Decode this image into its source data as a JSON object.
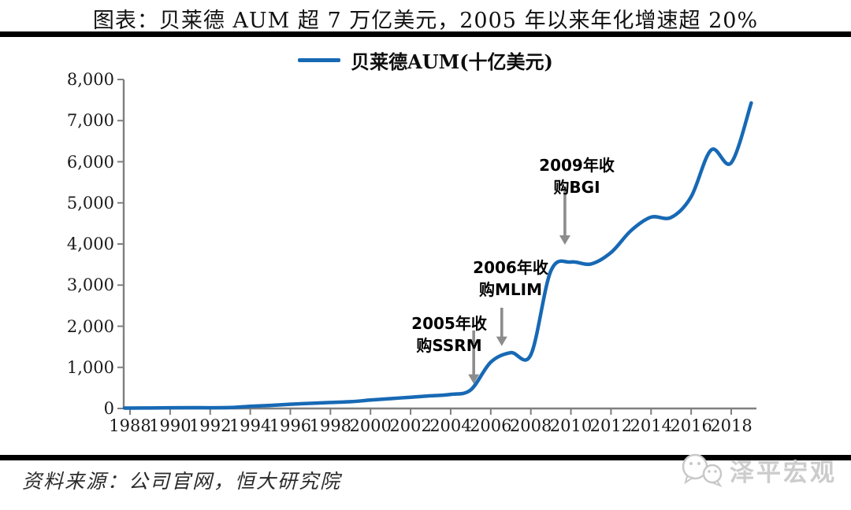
{
  "page": {
    "title": "图表：贝莱德 AUM 超 7 万亿美元，2005 年以来年化增速超 20%",
    "source_label": "资料来源：公司官网，恒大研究院",
    "watermark": "泽平宏观",
    "watermark_icon": "wechat-icon"
  },
  "chart_data": {
    "type": "line",
    "title": "",
    "xlabel": "",
    "ylabel": "",
    "grid": false,
    "legend_position": "top",
    "axis_color": "#7F7F7F",
    "annotation_color": "#8C8C8C",
    "xlim": [
      1988,
      2019.3
    ],
    "ylim": [
      0,
      8000
    ],
    "x": [
      1988,
      1989,
      1990,
      1991,
      1992,
      1993,
      1994,
      1995,
      1996,
      1997,
      1998,
      1999,
      2000,
      2001,
      2002,
      2003,
      2004,
      2005,
      2006,
      2007,
      2008,
      2009,
      2010,
      2011,
      2012,
      2013,
      2014,
      2015,
      2016,
      2017,
      2018,
      2019
    ],
    "series": [
      {
        "name": "贝莱德AUM(十亿美元)",
        "color": "#1769B4",
        "values": [
          9,
          12,
          17,
          19,
          17,
          23,
          53,
          75,
          103,
          125,
          146,
          165,
          204,
          239,
          273,
          309,
          342,
          452,
          1125,
          1357,
          1307,
          3346,
          3561,
          3513,
          3792,
          4325,
          4652,
          4645,
          5148,
          6288,
          5976,
          7430
        ]
      }
    ],
    "x_tick_values": [
      1988,
      1990,
      1992,
      1994,
      1996,
      1998,
      2000,
      2002,
      2004,
      2006,
      2008,
      2010,
      2012,
      2014,
      2016,
      2018
    ],
    "x_tick_labels": [
      "1988",
      "1990",
      "1992",
      "1994",
      "1996",
      "1998",
      "2000",
      "2002",
      "2004",
      "2006",
      "2008",
      "2010",
      "2012",
      "2014",
      "2016",
      "2018"
    ],
    "y_tick_values": [
      0,
      1000,
      2000,
      3000,
      4000,
      5000,
      6000,
      7000,
      8000
    ],
    "y_tick_labels": [
      "0",
      "1,000",
      "2,000",
      "3,000",
      "4,000",
      "5,000",
      "6,000",
      "7,000",
      "8,000"
    ],
    "annotations": [
      {
        "lines": [
          "2005年收",
          "购SSRM"
        ],
        "year": 2005.15,
        "arrow_from": 1900,
        "arrow_to": 600
      },
      {
        "lines": [
          "2006年收",
          "购MLIM"
        ],
        "year": 2006.55,
        "arrow_from": 2450,
        "arrow_to": 1520
      },
      {
        "lines": [
          "2009年收",
          "购BGI"
        ],
        "year": 2009.7,
        "arrow_from": 5400,
        "arrow_to": 3980
      }
    ]
  }
}
